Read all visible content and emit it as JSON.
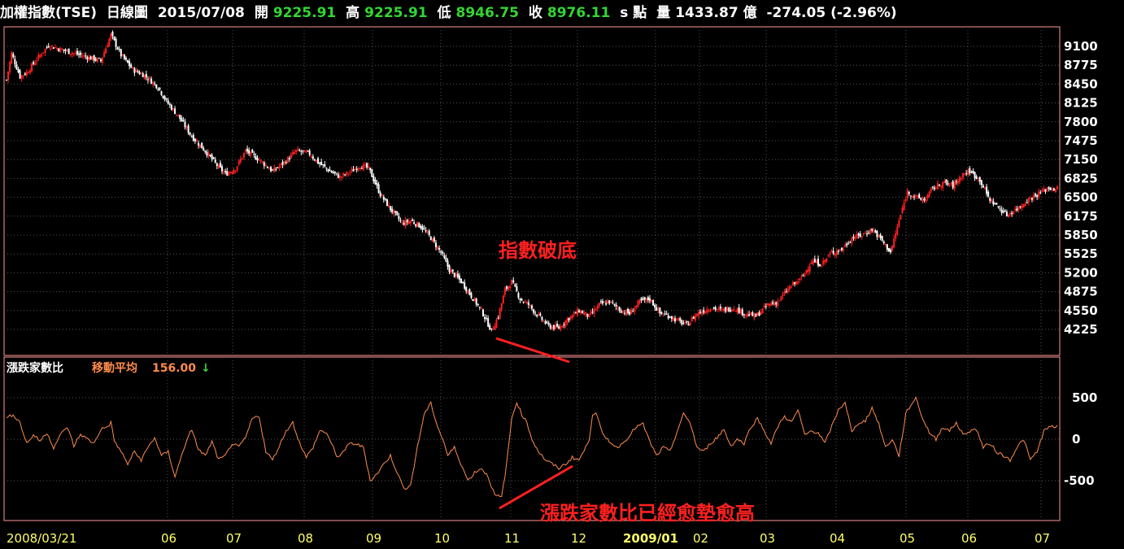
{
  "header": {
    "name": "加權指數(TSE)",
    "period": "日線圖",
    "date": "2015/07/08",
    "open_label": "開",
    "open": "9225.91",
    "high_label": "高",
    "high": "9225.91",
    "low_label": "低",
    "low": "8946.75",
    "close_label": "收",
    "close": "8976.11",
    "unit": "s 點",
    "volume_label": "量",
    "volume": "1433.87 億",
    "change": "-274.05 (-2.96%)"
  },
  "lower_panel": {
    "title": "漲跌家數比",
    "ma_label": "移動平均",
    "ma_value": "156.00",
    "ma_arrow": "↓"
  },
  "annotations": {
    "upper": "指數破底",
    "lower": "漲跌家數比已經愈墊愈高"
  },
  "x_axis_labels": [
    "2008/03/21",
    "06",
    "07",
    "08",
    "09",
    "10",
    "11",
    "12",
    "2009/01",
    "02",
    "03",
    "04",
    "05",
    "06",
    "07"
  ],
  "colors": {
    "up": "#ff2020",
    "down": "#ffffff",
    "grid": "#555555",
    "frame": "#ff9999",
    "oscillator": "#ff8c4c",
    "annotation": "#ff2020",
    "axis_text": "#ffffff",
    "date_text": "#ffff66",
    "ma_label": "#ff8c4c",
    "ma_value": "#ff8c4c",
    "arrow": "#33d633"
  },
  "chart_data": [
    {
      "type": "candlestick",
      "title": "加權指數(TSE)",
      "y_ticks": [
        9100,
        8775,
        8450,
        8125,
        7800,
        7475,
        7150,
        6825,
        6500,
        6175,
        5850,
        5525,
        5200,
        4875,
        4550,
        4225
      ],
      "ylim": [
        3990,
        9550
      ],
      "x_range": [
        "2008/03/21",
        "2009/07"
      ],
      "grid": true,
      "close_anchors": [
        [
          0,
          8520
        ],
        [
          3,
          8980
        ],
        [
          8,
          8580
        ],
        [
          12,
          8650
        ],
        [
          18,
          8880
        ],
        [
          25,
          9120
        ],
        [
          32,
          9050
        ],
        [
          40,
          8980
        ],
        [
          50,
          8900
        ],
        [
          56,
          8850
        ],
        [
          62,
          9300
        ],
        [
          68,
          8950
        ],
        [
          75,
          8700
        ],
        [
          82,
          8600
        ],
        [
          90,
          8400
        ],
        [
          95,
          8150
        ],
        [
          102,
          7900
        ],
        [
          110,
          7550
        ],
        [
          118,
          7300
        ],
        [
          125,
          7050
        ],
        [
          130,
          6900
        ],
        [
          136,
          7000
        ],
        [
          142,
          7300
        ],
        [
          150,
          7150
        ],
        [
          158,
          6950
        ],
        [
          165,
          7100
        ],
        [
          172,
          7300
        ],
        [
          180,
          7250
        ],
        [
          185,
          7100
        ],
        [
          192,
          6950
        ],
        [
          198,
          6850
        ],
        [
          205,
          6950
        ],
        [
          210,
          7050
        ],
        [
          215,
          7000
        ],
        [
          222,
          6550
        ],
        [
          228,
          6300
        ],
        [
          235,
          6050
        ],
        [
          240,
          6100
        ],
        [
          246,
          6000
        ],
        [
          252,
          5800
        ],
        [
          258,
          5550
        ],
        [
          263,
          5250
        ],
        [
          270,
          5050
        ],
        [
          276,
          4800
        ],
        [
          282,
          4550
        ],
        [
          288,
          4200
        ],
        [
          292,
          4450
        ],
        [
          296,
          4900
        ],
        [
          300,
          5050
        ],
        [
          305,
          4750
        ],
        [
          310,
          4650
        ],
        [
          316,
          4450
        ],
        [
          322,
          4280
        ],
        [
          328,
          4250
        ],
        [
          333,
          4400
        ],
        [
          340,
          4550
        ],
        [
          346,
          4450
        ],
        [
          352,
          4650
        ],
        [
          358,
          4700
        ],
        [
          365,
          4550
        ],
        [
          370,
          4500
        ],
        [
          376,
          4700
        ],
        [
          382,
          4750
        ],
        [
          388,
          4500
        ],
        [
          394,
          4450
        ],
        [
          400,
          4350
        ],
        [
          404,
          4300
        ],
        [
          410,
          4500
        ],
        [
          418,
          4600
        ],
        [
          425,
          4550
        ],
        [
          432,
          4600
        ],
        [
          438,
          4500
        ],
        [
          445,
          4450
        ],
        [
          452,
          4650
        ],
        [
          458,
          4700
        ],
        [
          465,
          4950
        ],
        [
          472,
          5100
        ],
        [
          478,
          5400
        ],
        [
          484,
          5350
        ],
        [
          490,
          5550
        ],
        [
          496,
          5600
        ],
        [
          502,
          5800
        ],
        [
          508,
          5850
        ],
        [
          514,
          5950
        ],
        [
          520,
          5750
        ],
        [
          525,
          5550
        ],
        [
          530,
          6100
        ],
        [
          535,
          6600
        ],
        [
          540,
          6500
        ],
        [
          545,
          6450
        ],
        [
          550,
          6650
        ],
        [
          556,
          6750
        ],
        [
          562,
          6700
        ],
        [
          568,
          6900
        ],
        [
          572,
          6950
        ],
        [
          578,
          6800
        ],
        [
          583,
          6500
        ],
        [
          588,
          6350
        ],
        [
          594,
          6200
        ],
        [
          600,
          6300
        ],
        [
          606,
          6450
        ],
        [
          612,
          6550
        ],
        [
          618,
          6650
        ],
        [
          624,
          6650
        ]
      ]
    },
    {
      "type": "line",
      "title": "漲跌家數比",
      "series": [
        {
          "name": "移動平均",
          "last_value": 156.0
        }
      ],
      "y_ticks": [
        500,
        0,
        -500
      ],
      "ylim": [
        -1000,
        1000
      ],
      "points": [
        [
          0,
          250
        ],
        [
          4,
          300
        ],
        [
          8,
          200
        ],
        [
          12,
          -50
        ],
        [
          16,
          50
        ],
        [
          20,
          -20
        ],
        [
          24,
          80
        ],
        [
          28,
          -100
        ],
        [
          32,
          50
        ],
        [
          36,
          150
        ],
        [
          40,
          -80
        ],
        [
          44,
          60
        ],
        [
          48,
          0
        ],
        [
          52,
          -50
        ],
        [
          56,
          120
        ],
        [
          60,
          150
        ],
        [
          62,
          200
        ],
        [
          64,
          -20
        ],
        [
          68,
          -150
        ],
        [
          72,
          -300
        ],
        [
          76,
          -150
        ],
        [
          80,
          -250
        ],
        [
          84,
          -100
        ],
        [
          88,
          20
        ],
        [
          92,
          -200
        ],
        [
          96,
          -150
        ],
        [
          100,
          -450
        ],
        [
          104,
          -200
        ],
        [
          108,
          50
        ],
        [
          110,
          100
        ],
        [
          114,
          -120
        ],
        [
          118,
          -200
        ],
        [
          122,
          -30
        ],
        [
          126,
          -250
        ],
        [
          130,
          -200
        ],
        [
          134,
          -50
        ],
        [
          138,
          -100
        ],
        [
          142,
          20
        ],
        [
          146,
          250
        ],
        [
          150,
          280
        ],
        [
          154,
          -150
        ],
        [
          158,
          -250
        ],
        [
          162,
          -80
        ],
        [
          166,
          100
        ],
        [
          170,
          200
        ],
        [
          174,
          -40
        ],
        [
          178,
          -220
        ],
        [
          182,
          -100
        ],
        [
          186,
          100
        ],
        [
          190,
          80
        ],
        [
          194,
          -100
        ],
        [
          196,
          -220
        ],
        [
          200,
          -150
        ],
        [
          204,
          -50
        ],
        [
          208,
          -60
        ],
        [
          212,
          -100
        ],
        [
          216,
          -500
        ],
        [
          220,
          -420
        ],
        [
          224,
          -300
        ],
        [
          228,
          -200
        ],
        [
          232,
          -400
        ],
        [
          236,
          -600
        ],
        [
          240,
          -550
        ],
        [
          244,
          -100
        ],
        [
          248,
          300
        ],
        [
          252,
          430
        ],
        [
          256,
          150
        ],
        [
          260,
          -50
        ],
        [
          262,
          -200
        ],
        [
          266,
          -100
        ],
        [
          270,
          -300
        ],
        [
          274,
          -500
        ],
        [
          278,
          -400
        ],
        [
          282,
          -350
        ],
        [
          286,
          -450
        ],
        [
          290,
          -680
        ],
        [
          294,
          -700
        ],
        [
          297,
          -300
        ],
        [
          300,
          250
        ],
        [
          303,
          450
        ],
        [
          306,
          300
        ],
        [
          309,
          200
        ],
        [
          312,
          0
        ],
        [
          316,
          -150
        ],
        [
          320,
          -250
        ],
        [
          324,
          -300
        ],
        [
          328,
          -350
        ],
        [
          332,
          -300
        ],
        [
          336,
          -220
        ],
        [
          340,
          -250
        ],
        [
          344,
          -100
        ],
        [
          346,
          0
        ],
        [
          348,
          300
        ],
        [
          350,
          330
        ],
        [
          354,
          50
        ],
        [
          358,
          -20
        ],
        [
          362,
          -100
        ],
        [
          366,
          -50
        ],
        [
          370,
          50
        ],
        [
          374,
          150
        ],
        [
          378,
          180
        ],
        [
          382,
          -30
        ],
        [
          386,
          -200
        ],
        [
          390,
          -100
        ],
        [
          394,
          -150
        ],
        [
          398,
          80
        ],
        [
          402,
          300
        ],
        [
          406,
          200
        ],
        [
          410,
          -100
        ],
        [
          414,
          -150
        ],
        [
          418,
          -50
        ],
        [
          422,
          20
        ],
        [
          426,
          120
        ],
        [
          430,
          -80
        ],
        [
          434,
          0
        ],
        [
          438,
          -50
        ],
        [
          442,
          150
        ],
        [
          446,
          250
        ],
        [
          450,
          100
        ],
        [
          454,
          -50
        ],
        [
          458,
          150
        ],
        [
          462,
          280
        ],
        [
          466,
          200
        ],
        [
          470,
          350
        ],
        [
          474,
          50
        ],
        [
          478,
          100
        ],
        [
          482,
          80
        ],
        [
          486,
          -50
        ],
        [
          490,
          150
        ],
        [
          494,
          350
        ],
        [
          498,
          450
        ],
        [
          502,
          80
        ],
        [
          506,
          200
        ],
        [
          510,
          220
        ],
        [
          514,
          380
        ],
        [
          518,
          180
        ],
        [
          522,
          -100
        ],
        [
          526,
          0
        ],
        [
          530,
          -200
        ],
        [
          534,
          300
        ],
        [
          536,
          380
        ],
        [
          540,
          500
        ],
        [
          544,
          250
        ],
        [
          548,
          80
        ],
        [
          552,
          0
        ],
        [
          556,
          150
        ],
        [
          560,
          100
        ],
        [
          564,
          200
        ],
        [
          568,
          50
        ],
        [
          572,
          100
        ],
        [
          576,
          120
        ],
        [
          580,
          -100
        ],
        [
          584,
          -50
        ],
        [
          588,
          -150
        ],
        [
          592,
          -200
        ],
        [
          596,
          -250
        ],
        [
          600,
          -100
        ],
        [
          604,
          0
        ],
        [
          608,
          -250
        ],
        [
          612,
          -150
        ],
        [
          616,
          100
        ],
        [
          620,
          150
        ],
        [
          624,
          156
        ]
      ]
    }
  ]
}
